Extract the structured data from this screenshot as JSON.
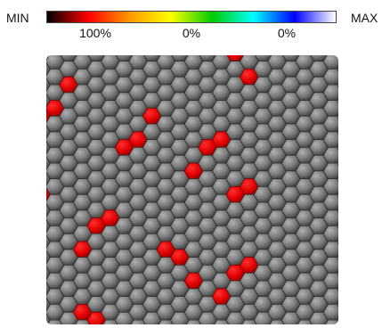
{
  "legend": {
    "min_label": "MIN",
    "max_label": "MAX",
    "ticks": [
      "100%",
      "0%",
      "0%"
    ],
    "gradient_colors": [
      "#000000",
      "#ff0000",
      "#ff9900",
      "#ffff00",
      "#00cc00",
      "#00ffff",
      "#0000ff",
      "#ffffff"
    ]
  },
  "grid": {
    "columns": 16,
    "rows": 21,
    "cell_color": "#6e6e6e",
    "highlight_color": "#ff0000",
    "highlighted_cells": [
      [
        0,
        14
      ],
      [
        1,
        15
      ],
      [
        2,
        2
      ],
      [
        3,
        1
      ],
      [
        4,
        0
      ],
      [
        4,
        8
      ],
      [
        5,
        7
      ],
      [
        6,
        6
      ],
      [
        5,
        13
      ],
      [
        6,
        12
      ],
      [
        7,
        11
      ],
      [
        8,
        15
      ],
      [
        9,
        14
      ],
      [
        9,
        0
      ],
      [
        10,
        5
      ],
      [
        11,
        4
      ],
      [
        12,
        3
      ],
      [
        12,
        9
      ],
      [
        13,
        10
      ],
      [
        14,
        11
      ],
      [
        13,
        15
      ],
      [
        14,
        14
      ],
      [
        15,
        13
      ],
      [
        16,
        3
      ],
      [
        17,
        4
      ],
      [
        18,
        2
      ],
      [
        18,
        7
      ],
      [
        19,
        8
      ],
      [
        20,
        9
      ],
      [
        18,
        14
      ],
      [
        19,
        15
      ],
      [
        20,
        16
      ],
      [
        21,
        13
      ],
      [
        22,
        14
      ],
      [
        23,
        12
      ],
      [
        24,
        1
      ],
      [
        25,
        15
      ],
      [
        25,
        0
      ],
      [
        27,
        5
      ],
      [
        28,
        4
      ],
      [
        29,
        5
      ],
      [
        28,
        10
      ],
      [
        29,
        11
      ]
    ]
  }
}
